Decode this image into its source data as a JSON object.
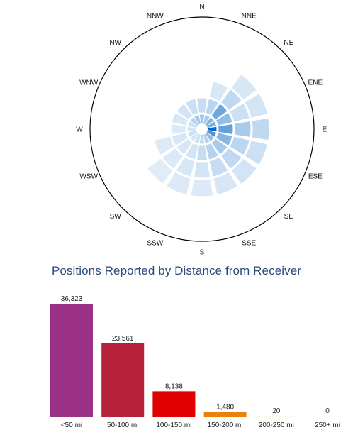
{
  "chart_data": [
    {
      "type": "polar-heatmap",
      "directions": [
        "N",
        "NNE",
        "NE",
        "ENE",
        "E",
        "ESE",
        "SE",
        "SSE",
        "S",
        "SSW",
        "SW",
        "WSW",
        "W",
        "WNW",
        "NW",
        "NNW"
      ],
      "rings": [
        "<50 mi",
        "50-100 mi",
        "100-150 mi",
        "150-200 mi",
        "200-250 mi",
        "250+ mi"
      ],
      "intensity": [
        [
          0.35,
          0.18,
          0.0,
          0.0,
          0.0,
          0.0
        ],
        [
          0.3,
          0.22,
          0.1,
          0.0,
          0.0,
          0.0
        ],
        [
          0.45,
          0.55,
          0.2,
          0.1,
          0.0,
          0.0
        ],
        [
          0.5,
          0.4,
          0.15,
          0.12,
          0.0,
          0.0
        ],
        [
          1.0,
          0.6,
          0.3,
          0.2,
          0.0,
          0.0
        ],
        [
          0.7,
          0.45,
          0.22,
          0.15,
          0.0,
          0.0
        ],
        [
          0.4,
          0.3,
          0.2,
          0.12,
          0.0,
          0.0
        ],
        [
          0.25,
          0.25,
          0.18,
          0.1,
          0.0,
          0.0
        ],
        [
          0.2,
          0.18,
          0.12,
          0.08,
          0.0,
          0.0
        ],
        [
          0.15,
          0.12,
          0.1,
          0.08,
          0.0,
          0.0
        ],
        [
          0.12,
          0.1,
          0.08,
          0.06,
          0.0,
          0.0
        ],
        [
          0.15,
          0.1,
          0.08,
          0.0,
          0.0,
          0.0
        ],
        [
          0.12,
          0.08,
          0.0,
          0.0,
          0.0,
          0.0
        ],
        [
          0.15,
          0.1,
          0.0,
          0.0,
          0.0,
          0.0
        ],
        [
          0.25,
          0.12,
          0.0,
          0.0,
          0.0,
          0.0
        ],
        [
          0.3,
          0.15,
          0.0,
          0.0,
          0.0,
          0.0
        ]
      ],
      "colors": {
        "low": "#eef5fc",
        "high": "#0868c4",
        "rim": "#000000"
      }
    },
    {
      "type": "bar",
      "title": "Positions Reported by Distance from Receiver",
      "categories": [
        "<50 mi",
        "50-100 mi",
        "100-150 mi",
        "150-200 mi",
        "200-250 mi",
        "250+ mi"
      ],
      "values": [
        36323,
        23561,
        8138,
        1480,
        20,
        0
      ],
      "value_labels": [
        "36,323",
        "23,561",
        "8,138",
        "1,480",
        "20",
        "0"
      ],
      "colors": [
        "#9b3186",
        "#b8213a",
        "#e00000",
        "#e8820c",
        "#e8b000",
        "#cccc00"
      ],
      "ylim": [
        0,
        36323
      ]
    }
  ]
}
